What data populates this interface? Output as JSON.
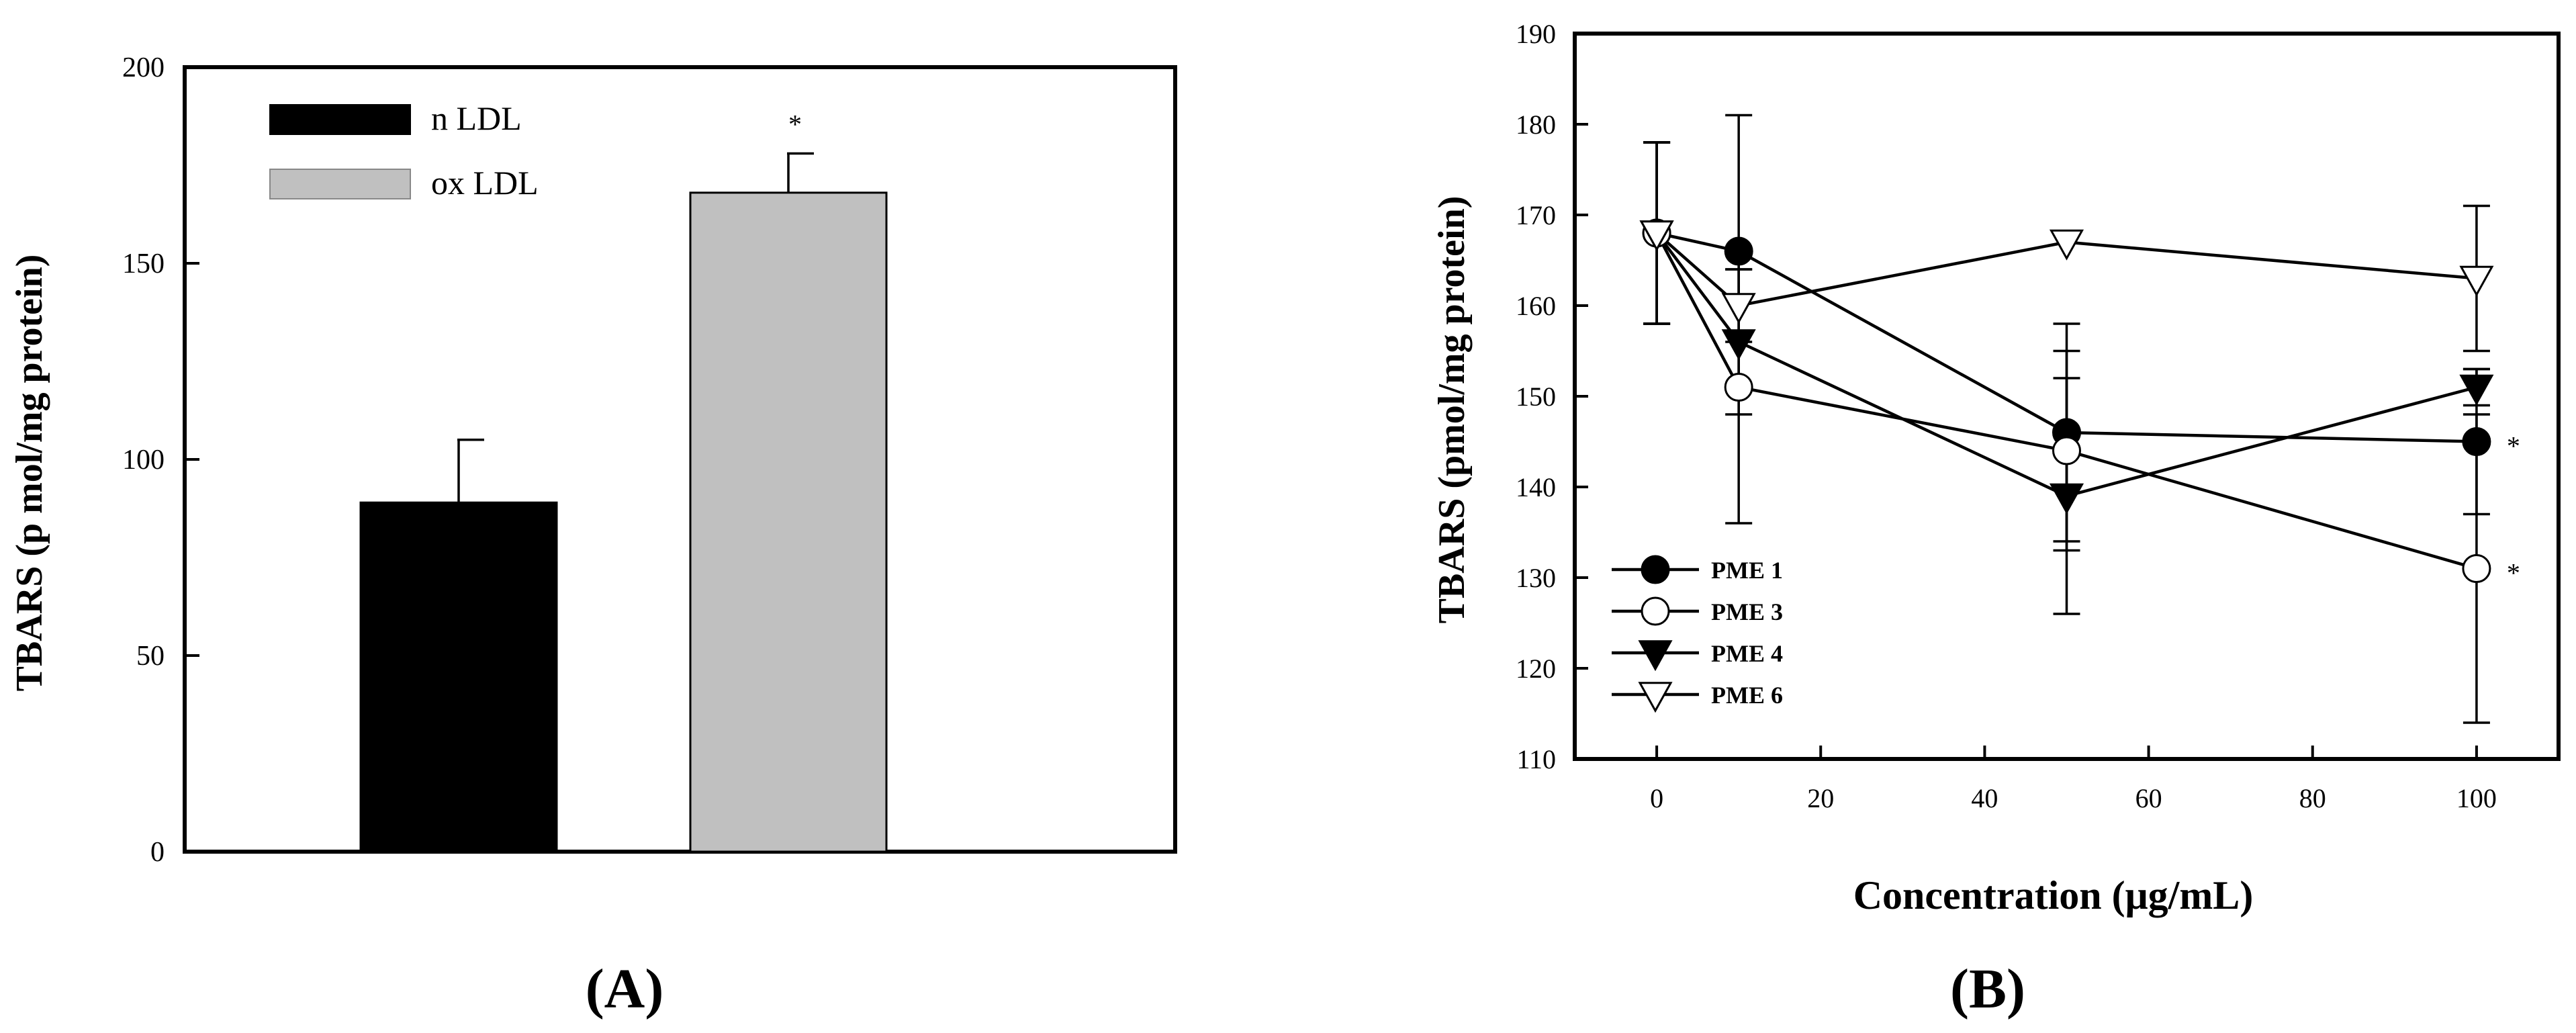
{
  "chart_data": [
    {
      "type": "bar",
      "panel_label": "(A)",
      "categories": [
        "n LDL",
        "ox LDL"
      ],
      "values": [
        89,
        168
      ],
      "errors": [
        16,
        10
      ],
      "colors": [
        "#000000",
        "#c0c0c0"
      ],
      "significance": [
        "",
        "*"
      ],
      "legend": [
        "n LDL",
        "ox LDL"
      ],
      "legend_position": "top-left",
      "ylabel": "TBARS (p mol/mg protein)",
      "xlabel": "",
      "ylim": [
        0,
        200
      ],
      "yticks": [
        0,
        50,
        100,
        150,
        200
      ],
      "grid": false
    },
    {
      "type": "line",
      "panel_label": "(B)",
      "x": [
        0,
        10,
        50,
        100
      ],
      "series": [
        {
          "name": "PME 1",
          "marker": "filled-circle",
          "values": [
            168,
            166,
            146,
            145
          ],
          "errors": [
            10,
            15,
            12,
            8
          ],
          "significance": [
            "",
            "",
            "",
            "*"
          ]
        },
        {
          "name": "PME 3",
          "marker": "open-circle",
          "values": [
            168,
            151,
            144,
            131
          ],
          "errors": [
            10,
            15,
            11,
            17
          ],
          "significance": [
            "",
            "",
            "",
            "*"
          ]
        },
        {
          "name": "PME 4",
          "marker": "filled-triangle-down",
          "values": [
            168,
            156,
            139,
            151
          ],
          "errors": [
            10,
            8,
            13,
            2
          ],
          "significance": [
            "",
            "",
            "",
            ""
          ]
        },
        {
          "name": "PME 6",
          "marker": "open-triangle-down",
          "values": [
            168,
            160,
            167,
            163
          ],
          "errors": [
            10,
            4,
            0,
            8
          ],
          "significance": [
            "",
            "",
            "",
            ""
          ]
        }
      ],
      "xlabel": "Concentration (μg/mL)",
      "ylabel": "TBARS (pmol/mg protein)",
      "xlim": [
        -10,
        110
      ],
      "ylim": [
        110,
        190
      ],
      "xticks": [
        0,
        20,
        40,
        60,
        80,
        100
      ],
      "yticks": [
        110,
        120,
        130,
        140,
        150,
        160,
        170,
        180,
        190
      ],
      "legend_position": "bottom-left",
      "grid": false
    }
  ]
}
